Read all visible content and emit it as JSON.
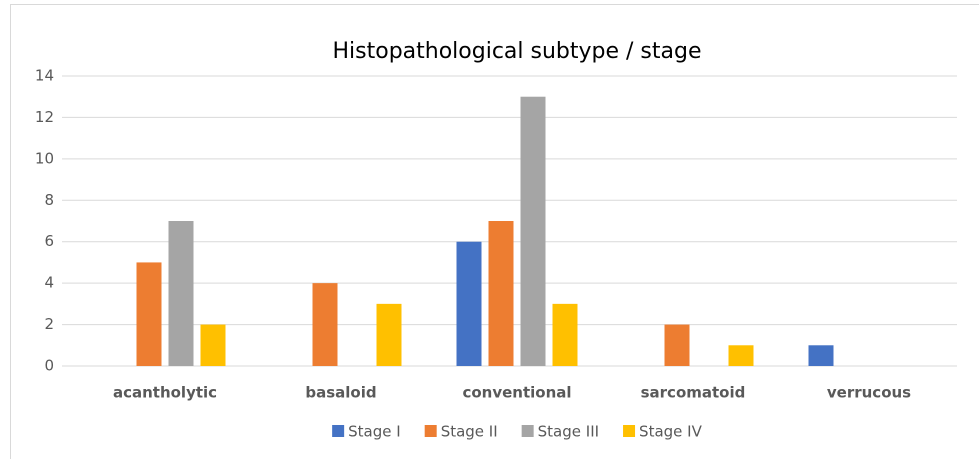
{
  "chart_data": {
    "type": "bar",
    "title": "Histopathological subtype / stage",
    "categories": [
      "acantholytic",
      "basaloid",
      "conventional",
      "sarcomatoid",
      "verrucous"
    ],
    "series": [
      {
        "name": "Stage I",
        "color": "#4472c4",
        "values": [
          0,
          0,
          6,
          0,
          1
        ]
      },
      {
        "name": "Stage II",
        "color": "#ed7d31",
        "values": [
          5,
          4,
          7,
          2,
          0
        ]
      },
      {
        "name": "Stage III",
        "color": "#a5a5a5",
        "values": [
          7,
          0,
          13,
          0,
          0
        ]
      },
      {
        "name": "Stage IV",
        "color": "#ffc000",
        "values": [
          2,
          3,
          3,
          1,
          0
        ]
      }
    ],
    "ylim": [
      0,
      14
    ],
    "yticks": [
      0,
      2,
      4,
      6,
      8,
      10,
      12,
      14
    ],
    "grid": true,
    "legend": "bottom"
  }
}
